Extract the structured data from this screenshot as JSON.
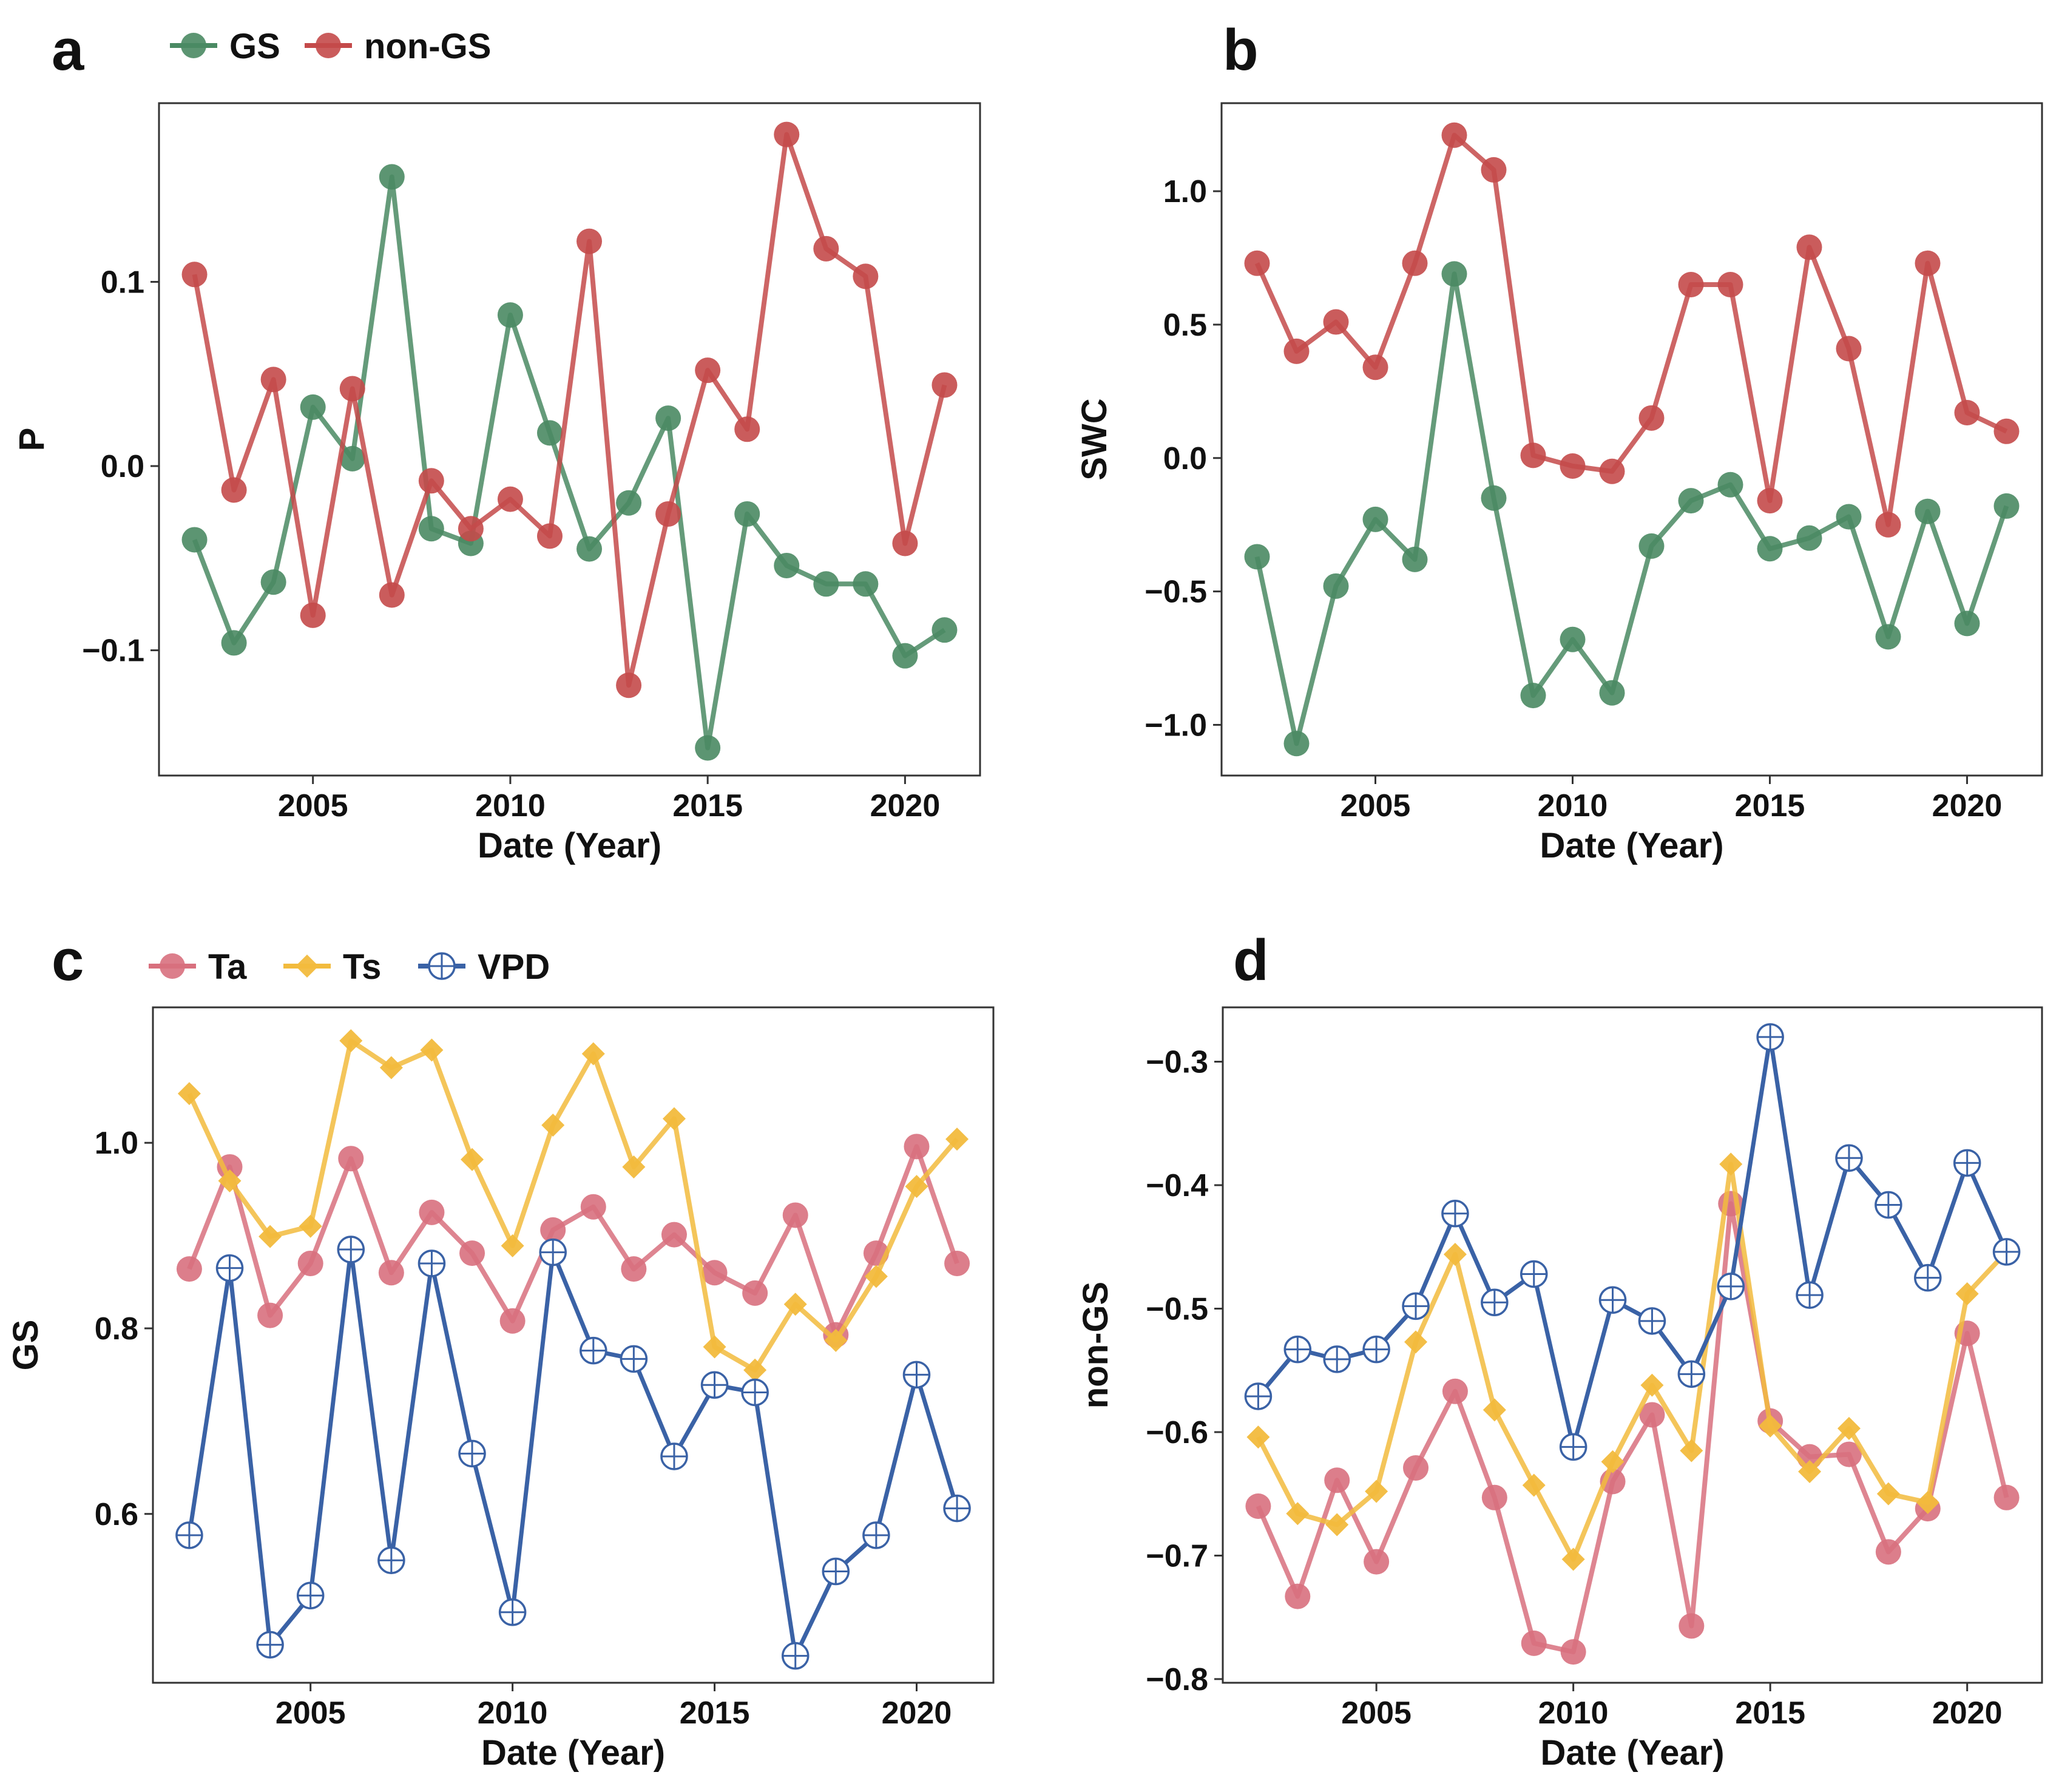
{
  "colors": {
    "GS": "#4a8a63",
    "non-GS": "#c44a4a",
    "Ta": "#d8707e",
    "Ts": "#f2bb3d",
    "VPD": "#3a62a6"
  },
  "chart_data": [
    {
      "id": "a",
      "type": "line",
      "panel_label": "a",
      "legend": [
        {
          "name": "GS",
          "marker": "circle"
        },
        {
          "name": "non-GS",
          "marker": "circle"
        }
      ],
      "xlabel": "Date (Year)",
      "ylabel": "P",
      "xlim": [
        2001.1,
        2021.9
      ],
      "ylim": [
        -0.168,
        0.197
      ],
      "xticks": [
        2005,
        2010,
        2015,
        2020
      ],
      "yticks": [
        -0.1,
        0.0,
        0.1
      ],
      "ytick_labels": [
        "−0.1",
        "0.0",
        "0.1"
      ],
      "x": [
        2002,
        2003,
        2004,
        2005,
        2006,
        2007,
        2008,
        2009,
        2010,
        2011,
        2012,
        2013,
        2014,
        2015,
        2016,
        2017,
        2018,
        2019,
        2020,
        2021
      ],
      "series": [
        {
          "name": "GS",
          "values": [
            -0.04,
            -0.096,
            -0.063,
            0.032,
            0.004,
            0.157,
            -0.034,
            -0.042,
            0.082,
            0.018,
            -0.045,
            -0.02,
            0.026,
            -0.153,
            -0.026,
            -0.054,
            -0.064,
            -0.064,
            -0.103,
            -0.089
          ]
        },
        {
          "name": "non-GS",
          "values": [
            0.104,
            -0.013,
            0.047,
            -0.081,
            0.042,
            -0.07,
            -0.008,
            -0.034,
            -0.018,
            -0.038,
            0.122,
            -0.119,
            -0.026,
            0.052,
            0.02,
            0.18,
            0.118,
            0.103,
            -0.042,
            0.044
          ]
        }
      ]
    },
    {
      "id": "b",
      "type": "line",
      "panel_label": "b",
      "xlabel": "Date (Year)",
      "ylabel": "SWC",
      "xlim": [
        2001.1,
        2021.9
      ],
      "ylim": [
        -1.19,
        1.33
      ],
      "xticks": [
        2005,
        2010,
        2015,
        2020
      ],
      "yticks": [
        -1.0,
        -0.5,
        0.0,
        0.5,
        1.0
      ],
      "ytick_labels": [
        "−1.0",
        "−0.5",
        "0.0",
        "0.5",
        "1.0"
      ],
      "x": [
        2002,
        2003,
        2004,
        2005,
        2006,
        2007,
        2008,
        2009,
        2010,
        2011,
        2012,
        2013,
        2014,
        2015,
        2016,
        2017,
        2018,
        2019,
        2020,
        2021
      ],
      "series": [
        {
          "name": "GS",
          "values": [
            -0.37,
            -1.07,
            -0.48,
            -0.23,
            -0.38,
            0.69,
            -0.15,
            -0.89,
            -0.68,
            -0.88,
            -0.33,
            -0.16,
            -0.1,
            -0.34,
            -0.3,
            -0.22,
            -0.67,
            -0.2,
            -0.62,
            -0.18
          ]
        },
        {
          "name": "non-GS",
          "values": [
            0.73,
            0.4,
            0.51,
            0.34,
            0.73,
            1.21,
            1.08,
            0.01,
            -0.03,
            -0.05,
            0.15,
            0.65,
            0.65,
            -0.16,
            0.79,
            0.41,
            -0.25,
            0.73,
            0.17,
            0.1
          ]
        }
      ]
    },
    {
      "id": "c",
      "type": "line",
      "panel_label": "c",
      "legend": [
        {
          "name": "Ta",
          "marker": "circle"
        },
        {
          "name": "Ts",
          "marker": "diamond"
        },
        {
          "name": "VPD",
          "marker": "crosshair"
        }
      ],
      "xlabel": "Date (Year)",
      "ylabel": "GS",
      "xlim": [
        2001.1,
        2021.9
      ],
      "ylim": [
        0.418,
        1.146
      ],
      "xticks": [
        2005,
        2010,
        2015,
        2020
      ],
      "yticks": [
        0.6,
        0.8,
        1.0
      ],
      "ytick_labels": [
        "0.6",
        "0.8",
        "1.0"
      ],
      "x": [
        2002,
        2003,
        2004,
        2005,
        2006,
        2007,
        2008,
        2009,
        2010,
        2011,
        2012,
        2013,
        2014,
        2015,
        2016,
        2017,
        2018,
        2019,
        2020,
        2021
      ],
      "series": [
        {
          "name": "Ta",
          "values": [
            0.864,
            0.974,
            0.814,
            0.87,
            0.983,
            0.86,
            0.925,
            0.881,
            0.808,
            0.906,
            0.931,
            0.864,
            0.901,
            0.86,
            0.838,
            0.922,
            0.793,
            0.881,
            0.996,
            0.87
          ]
        },
        {
          "name": "Ts",
          "values": [
            1.053,
            0.959,
            0.899,
            0.91,
            1.11,
            1.081,
            1.1,
            0.982,
            0.889,
            1.019,
            1.096,
            0.974,
            1.026,
            0.78,
            0.755,
            0.826,
            0.787,
            0.856,
            0.953,
            1.004
          ]
        },
        {
          "name": "VPD",
          "values": [
            0.577,
            0.865,
            0.459,
            0.512,
            0.885,
            0.55,
            0.87,
            0.665,
            0.494,
            0.882,
            0.776,
            0.767,
            0.662,
            0.739,
            0.731,
            0.447,
            0.538,
            0.577,
            0.75,
            0.606
          ]
        }
      ]
    },
    {
      "id": "d",
      "type": "line",
      "panel_label": "d",
      "xlabel": "Date (Year)",
      "ylabel": "non-GS",
      "xlim": [
        2001.1,
        2021.9
      ],
      "ylim": [
        -0.803,
        -0.256
      ],
      "xticks": [
        2005,
        2010,
        2015,
        2020
      ],
      "yticks": [
        -0.8,
        -0.7,
        -0.6,
        -0.5,
        -0.4,
        -0.3
      ],
      "ytick_labels": [
        "−0.8",
        "−0.7",
        "−0.6",
        "−0.5",
        "−0.4",
        "−0.3"
      ],
      "x": [
        2002,
        2003,
        2004,
        2005,
        2006,
        2007,
        2008,
        2009,
        2010,
        2011,
        2012,
        2013,
        2014,
        2015,
        2016,
        2017,
        2018,
        2019,
        2020,
        2021
      ],
      "series": [
        {
          "name": "Ta",
          "values": [
            -0.66,
            -0.733,
            -0.639,
            -0.705,
            -0.629,
            -0.567,
            -0.653,
            -0.771,
            -0.778,
            -0.64,
            -0.586,
            -0.757,
            -0.415,
            -0.591,
            -0.62,
            -0.618,
            -0.697,
            -0.662,
            -0.52,
            -0.653
          ]
        },
        {
          "name": "Ts",
          "values": [
            -0.604,
            -0.666,
            -0.675,
            -0.648,
            -0.527,
            -0.456,
            -0.582,
            -0.643,
            -0.703,
            -0.624,
            -0.562,
            -0.615,
            -0.383,
            -0.595,
            -0.632,
            -0.597,
            -0.65,
            -0.657,
            -0.488,
            -0.454
          ]
        },
        {
          "name": "VPD",
          "values": [
            -0.571,
            -0.533,
            -0.541,
            -0.533,
            -0.498,
            -0.423,
            -0.495,
            -0.472,
            -0.612,
            -0.493,
            -0.51,
            -0.553,
            -0.482,
            -0.28,
            -0.489,
            -0.378,
            -0.416,
            -0.475,
            -0.382,
            -0.454
          ]
        }
      ]
    }
  ]
}
